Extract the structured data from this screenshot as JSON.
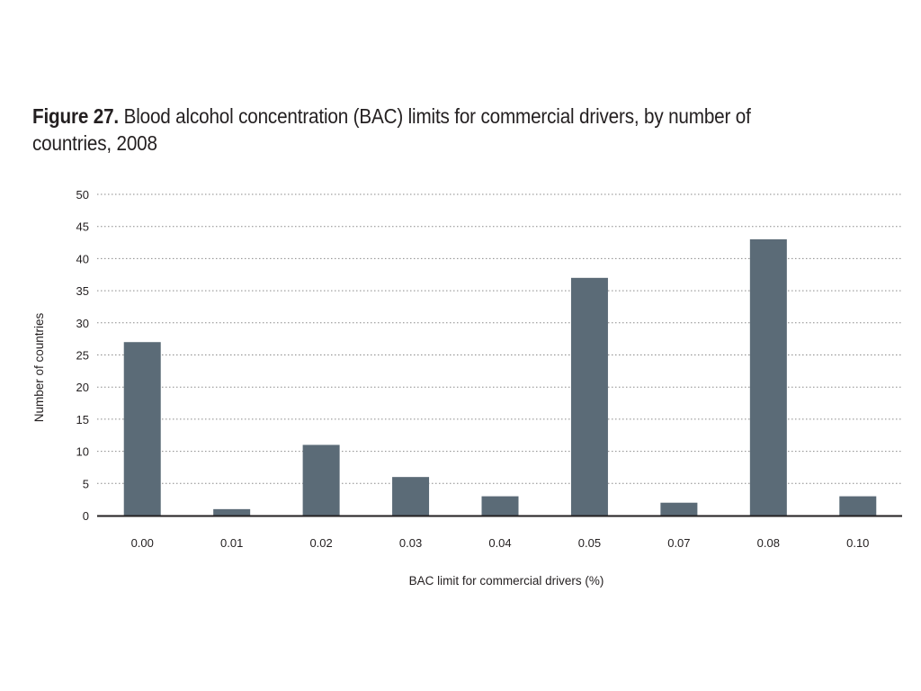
{
  "figure": {
    "label": "Figure 27.",
    "title": "Blood alcohol concentration (BAC) limits for commercial drivers, by number of countries, 2008"
  },
  "chart_data": {
    "type": "bar",
    "title": "Figure 27. Blood alcohol concentration (BAC) limits for commercial drivers, by number of countries, 2008",
    "xlabel": "BAC limit for commercial drivers (%)",
    "ylabel": "Number of countries",
    "categories": [
      "0.00",
      "0.01",
      "0.02",
      "0.03",
      "0.04",
      "0.05",
      "0.07",
      "0.08",
      "0.10"
    ],
    "values": [
      27,
      1,
      11,
      6,
      3,
      37,
      2,
      43,
      3
    ],
    "ylim": [
      0,
      50
    ],
    "yticks": [
      0,
      5,
      10,
      15,
      20,
      25,
      30,
      35,
      40,
      45,
      50
    ],
    "grid": "horizontal dotted",
    "legend": "none",
    "bar_color": "#5b6b77",
    "grid_color": "#8a8a8a",
    "axis_color": "#231f20"
  }
}
